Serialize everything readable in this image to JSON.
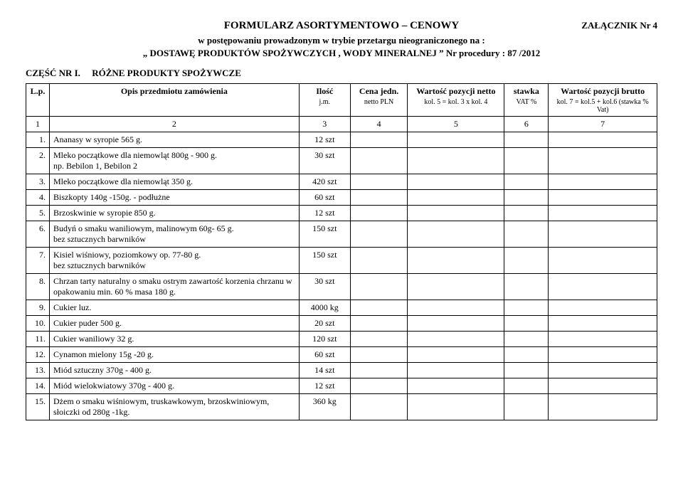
{
  "header": {
    "title": "FORMULARZ  ASORTYMENTOWO – CENOWY",
    "top_right": "ZAŁĄCZNIK Nr 4",
    "sub1": "w postępowaniu prowadzonym w trybie przetargu nieograniczonego na :",
    "sub2": "„ DOSTAWĘ PRODUKTÓW SPOŻYWCZYCH , WODY MINERALNEJ ” Nr procedury :   87 /2012"
  },
  "section": {
    "part_label": "CZĘŚĆ NR I.",
    "part_title": "RÓŻNE PRODUKTY SPOŻYWCZE"
  },
  "table": {
    "head": {
      "lp": "L.p.",
      "desc": "Opis przedmiotu zamówienia",
      "qty": "Ilość",
      "qty_sub": "j.m.",
      "price": "Cena jedn.",
      "price_sub": "netto\nPLN",
      "net": "Wartość  pozycji  netto",
      "net_sub": "kol.  5  =  kol.  3 x kol.  4",
      "vat": "stawka",
      "vat_sub": "VAT\n%",
      "gross": "Wartość pozycji brutto",
      "gross_sub": "kol. 7 = kol.5 + kol.6\n(stawka % Vat)"
    },
    "numrow": [
      "1",
      "2",
      "3",
      "4",
      "5",
      "6",
      "7"
    ],
    "rows": [
      {
        "n": "1.",
        "d": "Ananasy w syropie 565 g.",
        "q": "12 szt"
      },
      {
        "n": "2.",
        "d": "Mleko początkowe dla niemowląt 800g - 900 g.\nnp. Bebilon 1, Bebilon 2",
        "q": "30 szt"
      },
      {
        "n": "3.",
        "d": "Mleko początkowe dla niemowląt 350 g.",
        "q": "420 szt"
      },
      {
        "n": "4.",
        "d": "Biszkopty 140g -150g.  - podłużne",
        "q": "60 szt"
      },
      {
        "n": "5.",
        "d": "Brzoskwinie w syropie 850 g.",
        "q": "12 szt"
      },
      {
        "n": "6.",
        "d": "Budyń  o smaku waniliowym, malinowym   60g- 65 g.\nbez sztucznych barwników",
        "q": "150 szt"
      },
      {
        "n": "7.",
        "d": "Kisiel wiśniowy, poziomkowy op. 77-80 g.\nbez sztucznych barwników",
        "q": "150 szt"
      },
      {
        "n": "8.",
        "d": "Chrzan tarty naturalny o smaku ostrym zawartość korzenia chrzanu w opakowaniu min. 60 % masa 180 g.",
        "q": "30 szt"
      },
      {
        "n": "9.",
        "d": "Cukier luz.",
        "q": "4000 kg"
      },
      {
        "n": "10.",
        "d": "Cukier puder 500 g.",
        "q": "20 szt"
      },
      {
        "n": "11.",
        "d": "Cukier waniliowy 32 g.",
        "q": "120 szt"
      },
      {
        "n": "12.",
        "d": "Cynamon mielony 15g -20 g.",
        "q": "60 szt"
      },
      {
        "n": "13.",
        "d": "Miód sztuczny  370g - 400 g.",
        "q": "14 szt"
      },
      {
        "n": "14.",
        "d": "Miód wielokwiatowy 370g - 400 g.",
        "q": "12 szt"
      },
      {
        "n": "15.",
        "d": "Dżem o smaku wiśniowym, truskawkowym, brzoskwiniowym, słoiczki od 280g -1kg.",
        "q": "360 kg"
      }
    ]
  }
}
